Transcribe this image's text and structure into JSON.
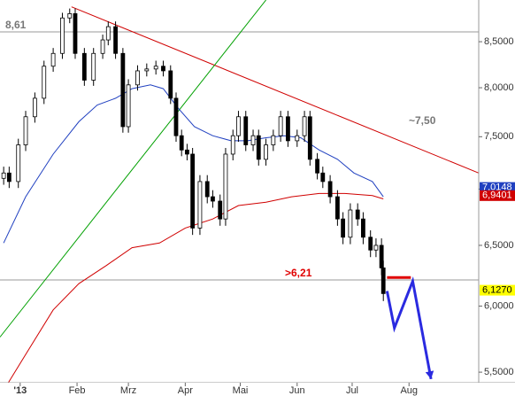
{
  "chart_data": {
    "type": "candlestick",
    "log_scale": true,
    "xlim": [
      -11,
      250
    ],
    "ylim": [
      5.33,
      8.98
    ],
    "xticks": [
      {
        "value": 0,
        "label": "'13"
      },
      {
        "value": 31,
        "label": "Feb"
      },
      {
        "value": 59,
        "label": "Mrz"
      },
      {
        "value": 90,
        "label": "Apr"
      },
      {
        "value": 120,
        "label": "Mai"
      },
      {
        "value": 151,
        "label": "Jun"
      },
      {
        "value": 181,
        "label": "Jul"
      },
      {
        "value": 212,
        "label": "Aug"
      }
    ],
    "yticks": [
      {
        "value": 5.5,
        "label": "5,5000"
      },
      {
        "value": 6.0,
        "label": "6,0000"
      },
      {
        "value": 6.5,
        "label": "6,5000"
      },
      {
        "value": 7.0,
        "label": "7,0000"
      },
      {
        "value": 7.5,
        "label": "7,5000"
      },
      {
        "value": 8.0,
        "label": "8,0000"
      },
      {
        "value": 8.5,
        "label": "8,5000"
      }
    ],
    "ohlc": {
      "x": [
        -9,
        -6,
        -1,
        3,
        8,
        13,
        18,
        23,
        27,
        30,
        35,
        40,
        45,
        48,
        52,
        56,
        59,
        64,
        69,
        74,
        78,
        82,
        85,
        88,
        91,
        94,
        98,
        102,
        105,
        109,
        112,
        116,
        119,
        123,
        127,
        130,
        134,
        138,
        142,
        146,
        151,
        155,
        158,
        162,
        165,
        169,
        173,
        176,
        180,
        184,
        187,
        191,
        194,
        197,
        198
      ],
      "open": [
        7.1,
        7.15,
        7.07,
        7.42,
        7.7,
        7.89,
        8.23,
        8.37,
        8.77,
        8.82,
        8.37,
        8.08,
        8.37,
        8.52,
        8.67,
        8.37,
        7.6,
        8.03,
        8.18,
        8.2,
        8.23,
        8.18,
        7.89,
        7.51,
        7.37,
        7.33,
        6.65,
        7.07,
        6.93,
        6.89,
        6.73,
        7.33,
        7.51,
        7.7,
        7.42,
        7.51,
        7.28,
        7.42,
        7.51,
        7.7,
        7.46,
        7.51,
        7.7,
        7.28,
        7.15,
        7.07,
        6.93,
        6.73,
        6.57,
        6.81,
        6.73,
        6.57,
        6.46,
        6.5,
        6.31
      ],
      "high": [
        7.21,
        7.21,
        7.48,
        7.76,
        7.95,
        8.29,
        8.43,
        8.83,
        8.88,
        8.88,
        8.43,
        8.43,
        8.58,
        8.73,
        8.73,
        8.43,
        8.09,
        8.24,
        8.26,
        8.29,
        8.29,
        8.24,
        7.95,
        7.57,
        7.43,
        7.39,
        7.13,
        7.13,
        6.99,
        6.95,
        7.39,
        7.57,
        7.76,
        7.76,
        7.57,
        7.57,
        7.48,
        7.57,
        7.76,
        7.76,
        7.57,
        7.76,
        7.76,
        7.34,
        7.21,
        7.13,
        6.99,
        6.79,
        6.87,
        6.87,
        6.79,
        6.63,
        6.56,
        6.56,
        6.37
      ],
      "low": [
        7.04,
        7.01,
        7.01,
        7.36,
        7.64,
        7.83,
        8.17,
        8.31,
        8.71,
        8.31,
        8.02,
        8.02,
        8.31,
        8.46,
        8.31,
        7.54,
        7.54,
        7.97,
        8.12,
        8.14,
        8.12,
        7.83,
        7.45,
        7.31,
        7.27,
        6.59,
        6.59,
        6.87,
        6.83,
        6.67,
        6.67,
        7.27,
        7.45,
        7.36,
        7.36,
        7.22,
        7.22,
        7.36,
        7.45,
        7.4,
        7.4,
        7.45,
        7.22,
        7.09,
        7.01,
        6.87,
        6.67,
        6.51,
        6.51,
        6.67,
        6.51,
        6.4,
        6.4,
        6.25,
        6.04
      ],
      "close": [
        7.15,
        7.07,
        7.42,
        7.7,
        7.89,
        8.23,
        8.37,
        8.77,
        8.82,
        8.37,
        8.08,
        8.37,
        8.52,
        8.67,
        8.37,
        7.6,
        8.03,
        8.18,
        8.2,
        8.23,
        8.18,
        7.89,
        7.51,
        7.37,
        7.33,
        6.65,
        7.07,
        6.93,
        6.89,
        6.73,
        7.33,
        7.51,
        7.7,
        7.42,
        7.51,
        7.28,
        7.42,
        7.51,
        7.7,
        7.46,
        7.51,
        7.7,
        7.28,
        7.15,
        7.07,
        6.93,
        6.73,
        6.57,
        6.81,
        6.73,
        6.57,
        6.46,
        6.5,
        6.31,
        6.1
      ]
    },
    "series": [
      {
        "color": "#2040c0",
        "x": [
          -9,
          3,
          18,
          32,
          42,
          52,
          61,
          71,
          78,
          86,
          95,
          105,
          115,
          124,
          134,
          144,
          153,
          163,
          173,
          182,
          192,
          198
        ],
        "values": [
          6.52,
          6.93,
          7.33,
          7.65,
          7.82,
          7.89,
          7.99,
          8.03,
          7.99,
          7.79,
          7.6,
          7.51,
          7.46,
          7.46,
          7.49,
          7.51,
          7.49,
          7.37,
          7.28,
          7.15,
          7.07,
          6.93
        ]
      },
      {
        "color": "#d00000",
        "x": [
          -9,
          3,
          18,
          32,
          47,
          61,
          76,
          90,
          105,
          119,
          134,
          148,
          163,
          177,
          192,
          198
        ],
        "values": [
          5.37,
          5.63,
          5.97,
          6.18,
          6.33,
          6.48,
          6.52,
          6.65,
          6.73,
          6.85,
          6.88,
          6.93,
          6.96,
          6.96,
          6.94,
          6.91
        ]
      }
    ],
    "trendlines": [
      {
        "color": "#d00000",
        "x": [
          28,
          250
        ],
        "values": [
          8.9,
          7.15
        ]
      },
      {
        "color": "#00a000",
        "x": [
          -11,
          134
        ],
        "values": [
          5.76,
          8.98
        ]
      }
    ],
    "projections": [
      {
        "color": "#e00000",
        "x": [
          200,
          213
        ],
        "values": [
          6.23,
          6.23
        ]
      },
      {
        "color": "#2a2ae0",
        "x": [
          200,
          204,
          214,
          224
        ],
        "values": [
          6.12,
          5.83,
          6.2,
          5.45
        ],
        "arrow": true
      }
    ],
    "levels": [
      {
        "value": 8.61,
        "label": "8,61",
        "color": "#777777"
      },
      {
        "value": 6.21,
        "label": ">6,21",
        "color": "#e00000"
      }
    ],
    "annotations": [
      "~7,50"
    ],
    "axis_markers": [
      {
        "value": 7.0148,
        "label": "7,0148",
        "color": "#2040c0"
      },
      {
        "value": 6.9401,
        "label": "6,9401",
        "color": "#d00000"
      },
      {
        "value": 6.127,
        "label": "6,1270",
        "color": "#ffff00"
      }
    ]
  }
}
